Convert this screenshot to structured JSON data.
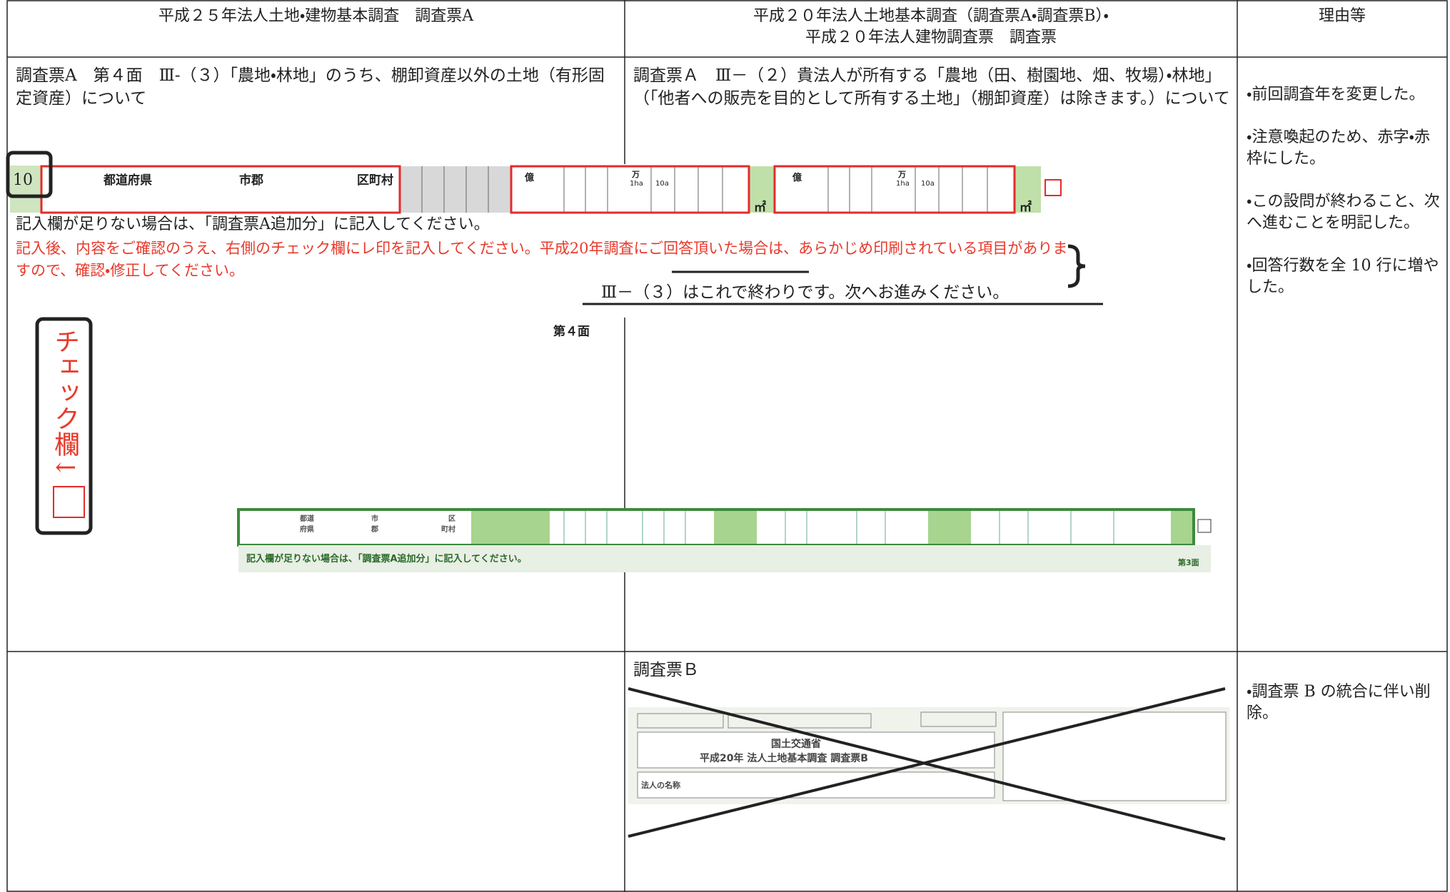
{
  "header": {
    "col1": "平成２５年法人土地・建物基本調査　調査票A",
    "col2": [
      "平成２０年法人土地基本調査（調査票A・調査票B）・",
      "平成２０年法人建物調査票　調査票"
    ],
    "col3": "理由等"
  },
  "rows": [
    {
      "left": {
        "heading": "調査票A　第４面　Ⅲ-（３）「農地・林地」のうち、棚卸資産以外の土地（有形固定資産）について",
        "form": {
          "row_number": "10",
          "cells": [
            "都道府県",
            "市郡",
            "区町村"
          ],
          "oku": "億",
          "man": "万",
          "ha": "1ha",
          "a10": "10a",
          "unit": "㎡"
        },
        "note": "記入欄が足りない場合は、「調査票A追加分」に記入してください。",
        "red_note": [
          "記入後、内容をご確認のうえ、右側のチェック欄にレ印を記入してください。",
          "平成20年調査",
          "にご回答頂いた場合は、あらかじめ印刷されている項目がありますので、確認・修正してください。"
        ],
        "end_note": "Ⅲ－（３）はこれで終わりです。次へお進みください。",
        "page": "第４面",
        "check": "チェック欄↓"
      },
      "middle": {
        "heading": "調査票Ａ　Ⅲ－（２）貴法人が所有する「農地（田、樹園地、畑、牧場）・林地」（「他者への販売を目的として所有する土地」（棚卸資産）は除きます。）について",
        "old_form": {
          "cells": [
            "都道",
            "府県",
            "市",
            "郡",
            "区",
            "町村"
          ],
          "note": "記入欄が足りない場合は、「調査票A追加分」に記入してください。",
          "page": "第3面"
        }
      },
      "reasons": [
        "・前回調査年を変更した。",
        "・注意喚起のため、赤字・赤枠にした。",
        "・この設問が終わること、次へ進むことを明記した。",
        "・回答行数を全 10 行に増やした。"
      ]
    },
    {
      "left": {},
      "middle": {
        "heading": "調査票Ｂ",
        "old_form": {
          "ministry": "国土交通省",
          "title": "平成20年 法人土地基本調査 調査票B",
          "name": "法人の名称"
        }
      },
      "reasons": [
        "・調査票 B の統合に伴い削除。"
      ]
    }
  ]
}
